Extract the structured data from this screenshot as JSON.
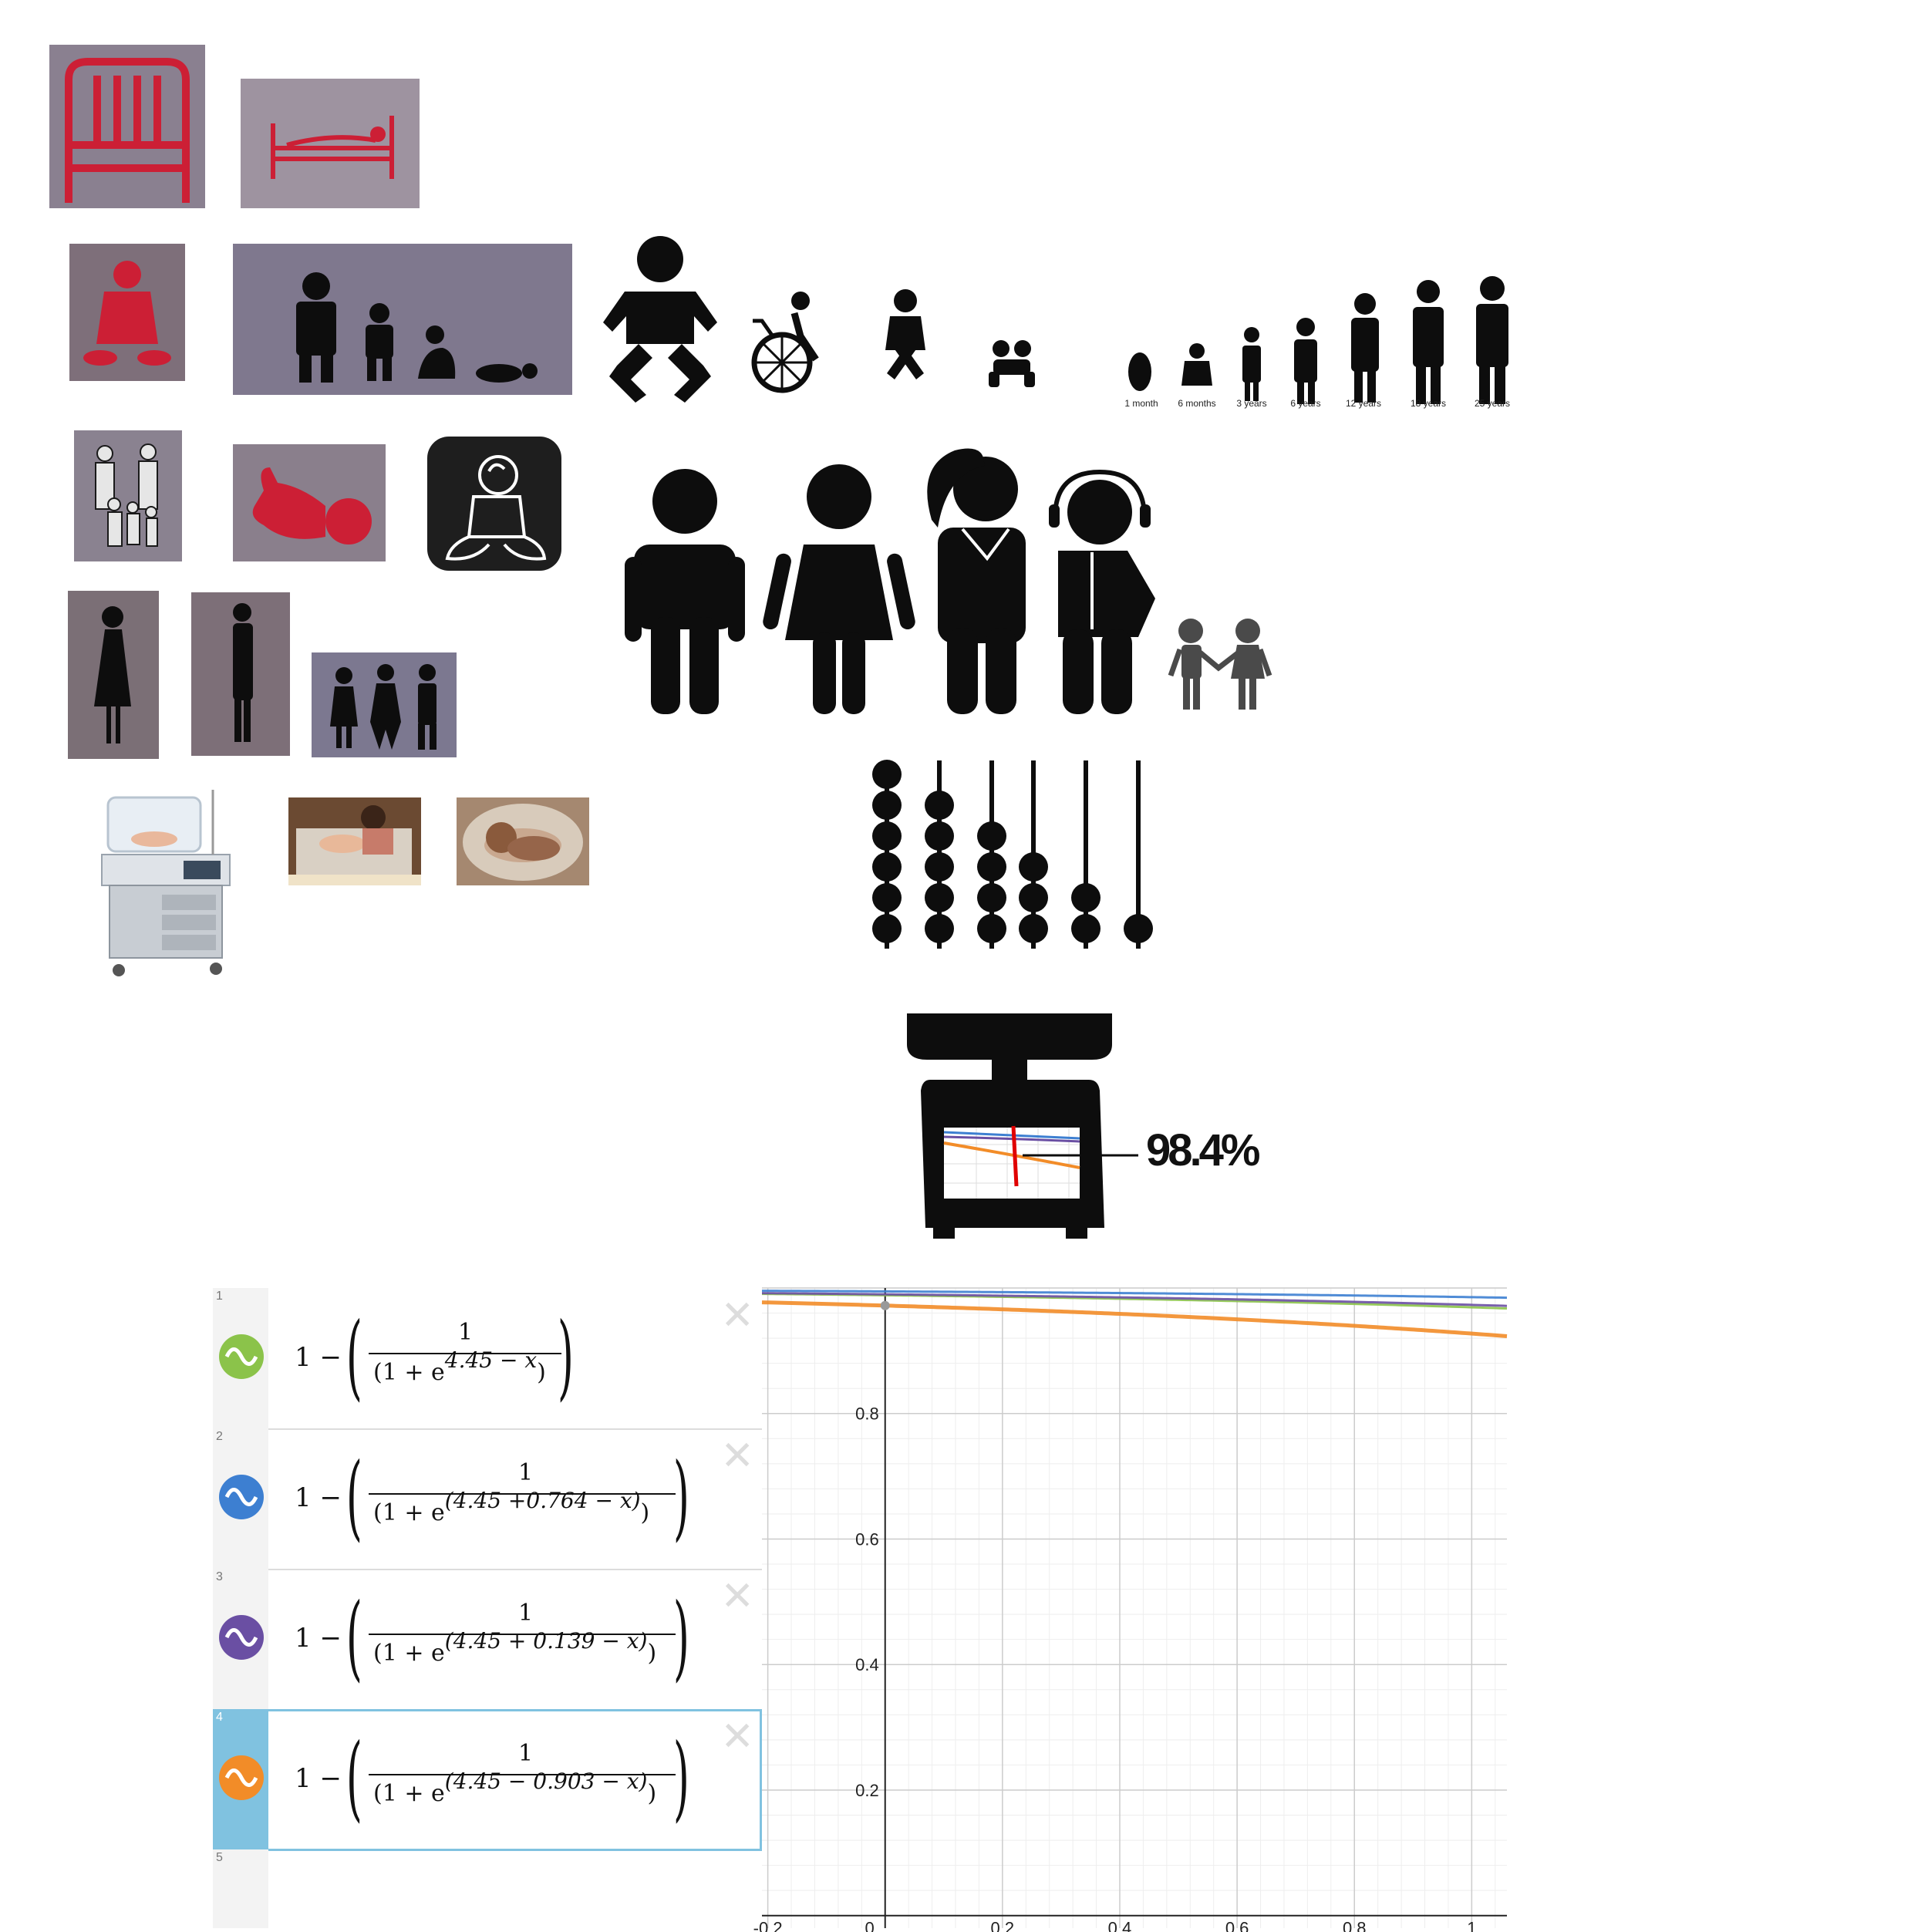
{
  "icons": {
    "tiles": [
      {
        "name": "hospital-bed-icon"
      },
      {
        "name": "person-in-bed-icon"
      },
      {
        "name": "infant-sitting-icon"
      },
      {
        "name": "family-growth-icon"
      },
      {
        "name": "baby-diaper-icon"
      },
      {
        "name": "wheelchair-child-icon"
      },
      {
        "name": "toddler-icon"
      },
      {
        "name": "crawling-baby-icon"
      },
      {
        "name": "family-group-icon"
      },
      {
        "name": "baby-lying-icon"
      },
      {
        "name": "baby-outline-icon"
      },
      {
        "name": "man-icon"
      },
      {
        "name": "woman-icon"
      },
      {
        "name": "woman-ponytail-icon"
      },
      {
        "name": "headset-agent-icon"
      },
      {
        "name": "two-children-icon"
      },
      {
        "name": "woman-silhouette-icon"
      },
      {
        "name": "man-silhouette-icon"
      },
      {
        "name": "three-people-icon"
      },
      {
        "name": "incubator-photo"
      },
      {
        "name": "nurse-incubator-photo"
      },
      {
        "name": "newborn-photo"
      },
      {
        "name": "abacus-icon"
      },
      {
        "name": "weighing-scale-icon"
      }
    ],
    "age_labels": [
      "1 month",
      "6 months",
      "3 years",
      "6 years",
      "12 years",
      "18 years",
      "25 years"
    ],
    "colors": {
      "red_icon": "#cc1f35",
      "gray_bg": "#8a8090",
      "black": "#111111"
    }
  },
  "scale": {
    "percent_label": "98.4%"
  },
  "desmos": {
    "expressions": [
      {
        "num": "1",
        "lead": "1 −",
        "numerator": "1",
        "denominator_pre": "(1  + e",
        "denominator_exp": "4.45 − x",
        "denominator_post": ")",
        "color": "#8bc34a",
        "icon": "wave-green-icon"
      },
      {
        "num": "2",
        "lead": "1 −",
        "numerator": "1",
        "denominator_pre": "(1  + e",
        "denominator_exp": "(4.45  +0.764 − x)",
        "denominator_post": ")",
        "color": "#3d7fd1",
        "icon": "wave-blue-icon"
      },
      {
        "num": "3",
        "lead": "1 −",
        "numerator": "1",
        "denominator_pre": "(1  + e",
        "denominator_exp": "(4.45 + 0.139  − x)",
        "denominator_post": ")",
        "color": "#6a4fa3",
        "icon": "wave-purple-icon"
      },
      {
        "num": "4",
        "lead": "1 −",
        "numerator": "1",
        "denominator_pre": "(1  + e",
        "denominator_exp": "(4.45  − 0.903  − x)",
        "denominator_post": ")",
        "color": "#f28c28",
        "icon": "wave-orange-icon"
      }
    ],
    "empty_row_num": "5",
    "delete_glyph": "✕",
    "graph": {
      "x_ticks": [
        "-0.2",
        "0",
        "0.2",
        "0.4",
        "0.6",
        "0.8",
        "1"
      ],
      "y_ticks": [
        "0.2",
        "0.4",
        "0.6",
        "0.8"
      ],
      "xlim": [
        -0.21,
        1.06
      ],
      "ylim": [
        -0.02,
        1.0
      ]
    }
  }
}
